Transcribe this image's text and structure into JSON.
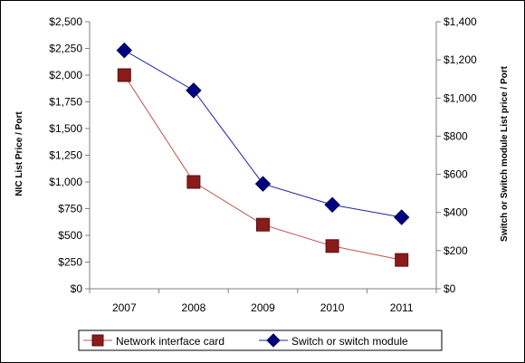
{
  "chart_data": {
    "type": "line",
    "categories": [
      "2007",
      "2008",
      "2009",
      "2010",
      "2011"
    ],
    "left_axis": {
      "title": "NIC List Price / Port",
      "min": 0,
      "max": 2500,
      "step": 250,
      "tick_labels": [
        "$0",
        "$250",
        "$500",
        "$750",
        "$1,000",
        "$1,250",
        "$1,500",
        "$1,750",
        "$2,000",
        "$2,250",
        "$2,500"
      ]
    },
    "right_axis": {
      "title": "Switch or Switch module List price / Port",
      "min": 0,
      "max": 1400,
      "step": 200,
      "tick_labels": [
        "$0",
        "$200",
        "$400",
        "$600",
        "$800",
        "$1,000",
        "$1,200",
        "$1,400"
      ]
    },
    "series": [
      {
        "name": "Network interface card",
        "axis": "left",
        "marker": "square",
        "color": "#8B1A1A",
        "line_color": "#C0504D",
        "values": [
          2000,
          1000,
          600,
          400,
          270
        ]
      },
      {
        "name": "Switch or switch module",
        "axis": "right",
        "marker": "diamond",
        "color": "#000080",
        "line_color": "#1F1FA8",
        "values": [
          1250,
          1040,
          550,
          440,
          375
        ]
      }
    ],
    "legend_position": "bottom",
    "grid": false
  }
}
